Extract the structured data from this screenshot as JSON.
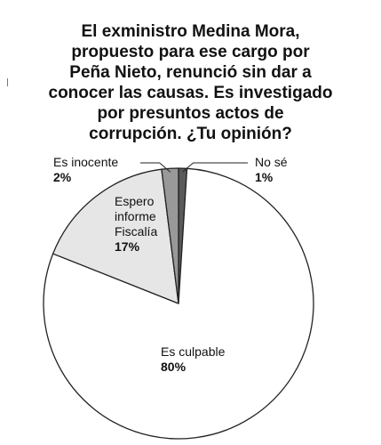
{
  "title_lines": [
    "El exministro Medina Mora,",
    "propuesto para ese cargo por",
    "Peña Nieto, renunció sin dar a",
    "conocer las causas. Es investigado",
    "por presuntos actos de",
    "corrupción. ¿Tu opinión?"
  ],
  "chart_data": {
    "type": "pie",
    "title": "El exministro Medina Mora, propuesto para ese cargo por Peña Nieto, renunció sin dar a conocer las causas. Es investigado por presuntos actos de corrupción. ¿Tu opinión?",
    "slices": [
      {
        "label": "No sé",
        "value": 1,
        "value_label": "1%",
        "color": "#5a5a5a"
      },
      {
        "label": "Es culpable",
        "value": 80,
        "value_label": "80%",
        "color": "#ffffff"
      },
      {
        "label": "Espero informe Fiscalía",
        "label_lines": [
          "Espero",
          "informe",
          "Fiscalía"
        ],
        "value": 17,
        "value_label": "17%",
        "color": "#e6e6e6"
      },
      {
        "label": "Es inocente",
        "value": 2,
        "value_label": "2%",
        "color": "#999999"
      }
    ],
    "start": "12 o'clock",
    "direction": "clockwise",
    "stroke_color": "#222222"
  }
}
